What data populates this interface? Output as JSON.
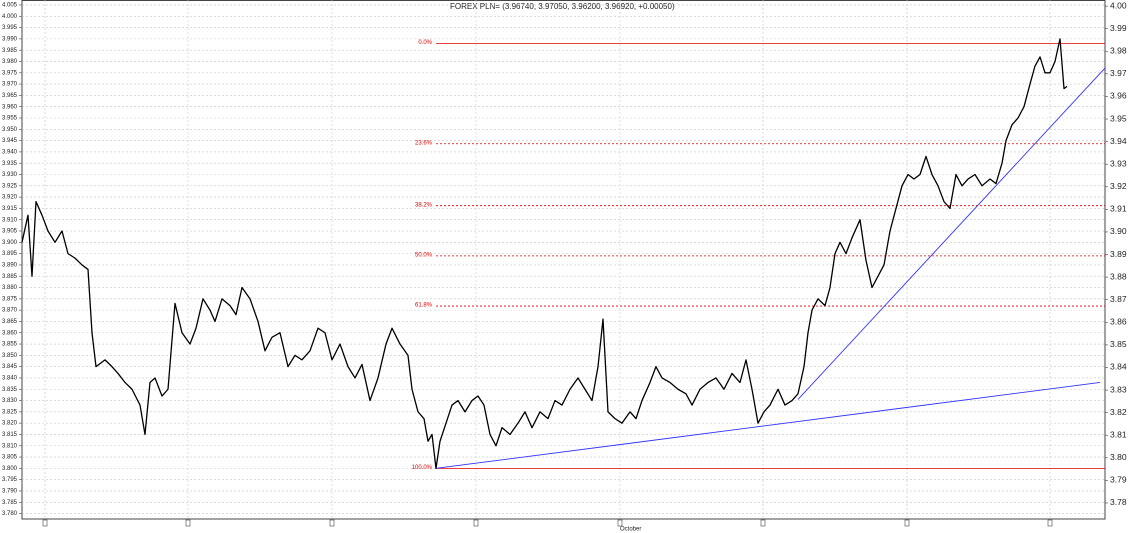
{
  "chart_data": {
    "type": "line",
    "title": "FOREX PLN= (3.96740, 3.97050, 3.96200, 3.96920, +0.00050)",
    "grid": true,
    "xlim": [
      0,
      1083
    ],
    "xticks": [
      23,
      166,
      310,
      454,
      {
        "value": 598,
        "label": "October"
      },
      741,
      885,
      1028
    ],
    "ylim": [
      3.7776,
      4.0072
    ],
    "yticks": [
      4.005,
      {
        "value": 4,
        "label": "4.000"
      },
      3.995,
      {
        "value": 3.99,
        "label": "3.990"
      },
      3.985,
      {
        "value": 3.98,
        "label": "3.980"
      },
      3.975,
      {
        "value": 3.97,
        "label": "3.970"
      },
      3.965,
      {
        "value": 3.96,
        "label": "3.960"
      },
      3.955,
      {
        "value": 3.95,
        "label": "3.950"
      },
      3.945,
      {
        "value": 3.94,
        "label": "3.940"
      },
      3.935,
      {
        "value": 3.93,
        "label": "3.930"
      },
      3.925,
      {
        "value": 3.92,
        "label": "3.920"
      },
      3.915,
      {
        "value": 3.91,
        "label": "3.910"
      },
      3.905,
      {
        "value": 3.9,
        "label": "3.900"
      },
      3.895,
      {
        "value": 3.89,
        "label": "3.890"
      },
      3.885,
      {
        "value": 3.88,
        "label": "3.880"
      },
      3.875,
      {
        "value": 3.87,
        "label": "3.870"
      },
      3.865,
      {
        "value": 3.86,
        "label": "3.860"
      },
      3.855,
      {
        "value": 3.85,
        "label": "3.850"
      },
      3.845,
      {
        "value": 3.84,
        "label": "3.840"
      },
      3.835,
      {
        "value": 3.83,
        "label": "3.830"
      },
      3.825,
      {
        "value": 3.82,
        "label": "3.820"
      },
      3.815,
      {
        "value": 3.81,
        "label": "3.810"
      },
      3.805,
      {
        "value": 3.8,
        "label": "3.800"
      },
      3.795,
      {
        "value": 3.79,
        "label": "3.790"
      },
      3.785,
      {
        "value": 3.78,
        "label": "3.780"
      }
    ],
    "y2lim": [
      3.7729,
      4.0027
    ],
    "y2ticks": [
      {
        "value": 4,
        "label": "4.00"
      },
      3.99,
      3.98,
      3.97,
      3.96,
      3.95,
      3.94,
      3.93,
      3.92,
      3.91,
      {
        "value": 3.9,
        "label": "3.90"
      },
      3.89,
      3.88,
      3.87,
      3.86,
      3.85,
      3.84,
      3.83,
      3.82,
      3.81,
      {
        "value": 3.8,
        "label": "3.80"
      },
      3.79,
      3.78
    ],
    "series": [
      {
        "color": "#000000",
        "x": [
          0,
          6,
          10,
          14,
          20,
          26,
          33,
          40,
          46,
          53,
          60,
          66,
          70,
          74,
          83,
          90,
          96,
          103,
          110,
          118,
          123,
          128,
          133,
          140,
          146,
          153,
          160,
          168,
          174,
          181,
          188,
          193,
          200,
          208,
          214,
          220,
          228,
          236,
          243,
          250,
          258,
          266,
          273,
          280,
          288,
          296,
          303,
          310,
          318,
          326,
          333,
          340,
          348,
          356,
          364,
          370,
          378,
          386,
          390,
          396,
          402,
          406,
          410,
          414,
          418,
          424,
          430,
          436,
          443,
          450,
          456,
          462,
          468,
          474,
          480,
          488,
          496,
          503,
          510,
          518,
          526,
          533,
          540,
          548,
          556,
          563,
          570,
          576,
          581,
          586,
          593,
          600,
          608,
          614,
          620,
          628,
          634,
          640,
          648,
          656,
          664,
          670,
          678,
          686,
          694,
          702,
          710,
          718,
          724,
          730,
          736,
          742,
          748,
          756,
          763,
          770,
          776,
          782,
          786,
          790,
          796,
          803,
          808,
          813,
          818,
          824,
          830,
          838,
          844,
          850,
          856,
          862,
          868,
          874,
          880,
          886,
          892,
          898,
          904,
          910,
          916,
          922,
          928,
          934,
          940,
          946,
          953,
          960,
          968,
          974,
          980,
          984,
          990,
          996,
          1002,
          1008,
          1013,
          1018,
          1023,
          1028,
          1033,
          1038,
          1042,
          1045
        ],
        "values": [
          3.9,
          3.912,
          3.885,
          3.918,
          3.912,
          3.905,
          3.9,
          3.905,
          3.895,
          3.893,
          3.89,
          3.888,
          3.86,
          3.845,
          3.848,
          3.845,
          3.842,
          3.838,
          3.835,
          3.828,
          3.815,
          3.838,
          3.84,
          3.832,
          3.835,
          3.873,
          3.86,
          3.855,
          3.862,
          3.875,
          3.87,
          3.865,
          3.875,
          3.872,
          3.868,
          3.88,
          3.875,
          3.865,
          3.852,
          3.858,
          3.86,
          3.845,
          3.85,
          3.848,
          3.852,
          3.862,
          3.86,
          3.848,
          3.855,
          3.845,
          3.84,
          3.846,
          3.83,
          3.84,
          3.855,
          3.862,
          3.855,
          3.85,
          3.835,
          3.825,
          3.822,
          3.812,
          3.815,
          3.8,
          3.812,
          3.82,
          3.828,
          3.83,
          3.825,
          3.83,
          3.832,
          3.828,
          3.815,
          3.81,
          3.818,
          3.815,
          3.82,
          3.825,
          3.818,
          3.825,
          3.822,
          3.83,
          3.828,
          3.835,
          3.84,
          3.835,
          3.83,
          3.845,
          3.866,
          3.825,
          3.822,
          3.82,
          3.825,
          3.822,
          3.83,
          3.838,
          3.845,
          3.84,
          3.838,
          3.835,
          3.833,
          3.828,
          3.835,
          3.838,
          3.84,
          3.835,
          3.842,
          3.838,
          3.848,
          3.835,
          3.82,
          3.825,
          3.828,
          3.835,
          3.828,
          3.83,
          3.833,
          3.845,
          3.86,
          3.87,
          3.875,
          3.872,
          3.88,
          3.895,
          3.9,
          3.895,
          3.902,
          3.91,
          3.892,
          3.88,
          3.885,
          3.89,
          3.905,
          3.915,
          3.925,
          3.93,
          3.928,
          3.93,
          3.938,
          3.93,
          3.925,
          3.918,
          3.915,
          3.93,
          3.925,
          3.928,
          3.93,
          3.925,
          3.928,
          3.926,
          3.935,
          3.945,
          3.952,
          3.955,
          3.96,
          3.97,
          3.978,
          3.982,
          3.975,
          3.975,
          3.98,
          3.99,
          3.968,
          3.969
        ]
      }
    ],
    "trendlines": [
      {
        "color": "#3333ff",
        "x": [
          414,
          1078
        ],
        "y": [
          3.8,
          3.838
        ]
      },
      {
        "color": "#3333ff",
        "x": [
          776,
          1083
        ],
        "y": [
          3.8305,
          3.9771
        ]
      }
    ],
    "fibonacci": {
      "color": "#e00000",
      "x_start": 414,
      "levels": [
        {
          "value": 3.988,
          "label": "0.0%",
          "solid": true
        },
        {
          "value": 3.9436,
          "label": "23.6%",
          "solid": false
        },
        {
          "value": 3.9162,
          "label": "38.2%",
          "solid": false
        },
        {
          "value": 3.894,
          "label": "50.0%",
          "solid": false
        },
        {
          "value": 3.8718,
          "label": "61.8%",
          "solid": false
        },
        {
          "value": 3.8,
          "label": "100.0%",
          "solid": true
        }
      ]
    }
  }
}
